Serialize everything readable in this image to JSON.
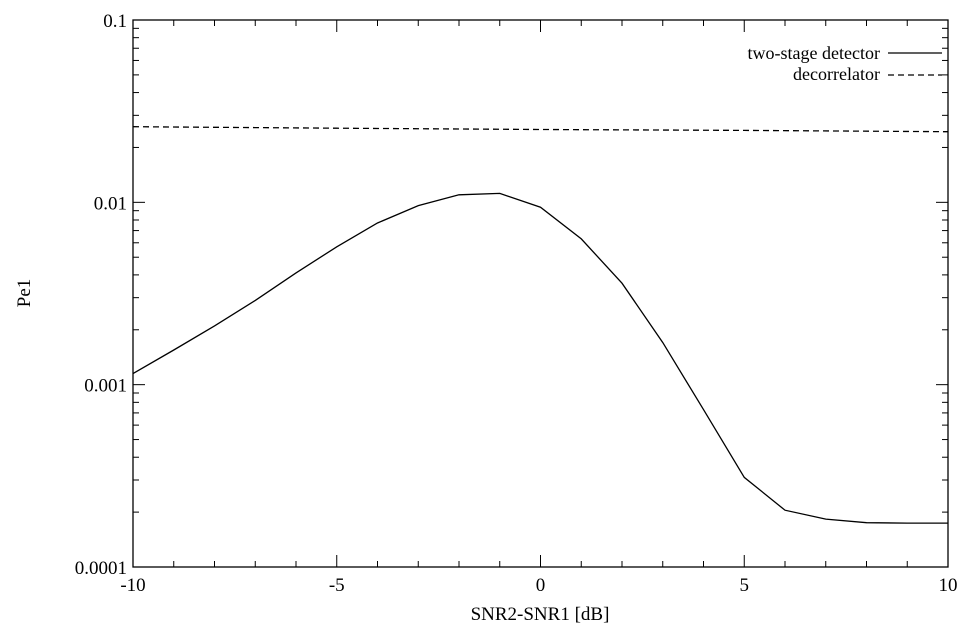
{
  "chart_data": {
    "type": "line",
    "title": "",
    "xlabel": "SNR2-SNR1 [dB]",
    "ylabel": "Pe1",
    "xlim": [
      -10,
      10
    ],
    "ylim": [
      0.0001,
      0.1
    ],
    "yscale": "log",
    "grid": false,
    "legend_position": "top-right",
    "x_ticks": [
      -10,
      -5,
      0,
      5,
      10
    ],
    "x_tick_labels": [
      "-10",
      "-5",
      "0",
      "5",
      "10"
    ],
    "y_ticks": [
      0.0001,
      0.001,
      0.01,
      0.1
    ],
    "y_tick_labels": [
      "0.0001",
      "0.001",
      "0.01",
      "0.1"
    ],
    "series": [
      {
        "name": "two-stage detector",
        "style": "solid",
        "x": [
          -10,
          -9,
          -8,
          -7,
          -6,
          -5,
          -4,
          -3,
          -2,
          -1,
          0,
          1,
          2,
          3,
          4,
          5,
          6,
          7,
          8,
          9,
          10
        ],
        "y": [
          0.00115,
          0.00155,
          0.0021,
          0.0029,
          0.0041,
          0.0057,
          0.0077,
          0.0096,
          0.011,
          0.0112,
          0.0094,
          0.0063,
          0.0036,
          0.0017,
          0.00073,
          0.00031,
          0.000205,
          0.000183,
          0.000175,
          0.000174,
          0.000174
        ]
      },
      {
        "name": "decorrelator",
        "style": "dashed",
        "x": [
          -10,
          -5,
          0,
          5,
          10
        ],
        "y": [
          0.026,
          0.0255,
          0.0251,
          0.0248,
          0.0244
        ]
      }
    ]
  }
}
